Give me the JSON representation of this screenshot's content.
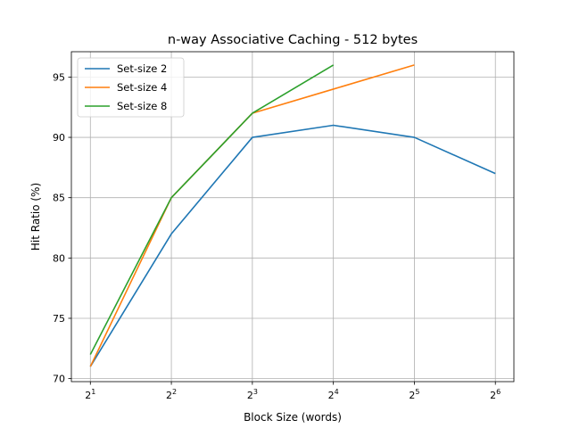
{
  "chart_data": {
    "type": "line",
    "title": "n-way Associative Caching - 512 bytes",
    "xlabel": "Block Size (words)",
    "ylabel": "Hit Ratio (%)",
    "x_scale": "log2",
    "x_ticks": [
      {
        "value": 2,
        "base": "2",
        "exp": "1"
      },
      {
        "value": 4,
        "base": "2",
        "exp": "2"
      },
      {
        "value": 8,
        "base": "2",
        "exp": "3"
      },
      {
        "value": 16,
        "base": "2",
        "exp": "4"
      },
      {
        "value": 32,
        "base": "2",
        "exp": "5"
      },
      {
        "value": 64,
        "base": "2",
        "exp": "6"
      }
    ],
    "y_ticks": [
      70,
      75,
      80,
      85,
      90,
      95
    ],
    "xlim": [
      1.7,
      75
    ],
    "ylim": [
      69.75,
      97.1
    ],
    "grid": true,
    "legend_position": "top-left",
    "series": [
      {
        "name": "Set-size 2",
        "color": "#1f77b4",
        "x": [
          2,
          4,
          8,
          16,
          32,
          64
        ],
        "y": [
          71,
          82,
          90,
          91,
          90,
          87
        ]
      },
      {
        "name": "Set-size 4",
        "color": "#ff7f0e",
        "x": [
          2,
          4,
          8,
          16,
          32
        ],
        "y": [
          71,
          85,
          92,
          94,
          96
        ]
      },
      {
        "name": "Set-size 8",
        "color": "#2ca02c",
        "x": [
          2,
          4,
          8,
          16
        ],
        "y": [
          72,
          85,
          92,
          96
        ]
      }
    ]
  }
}
